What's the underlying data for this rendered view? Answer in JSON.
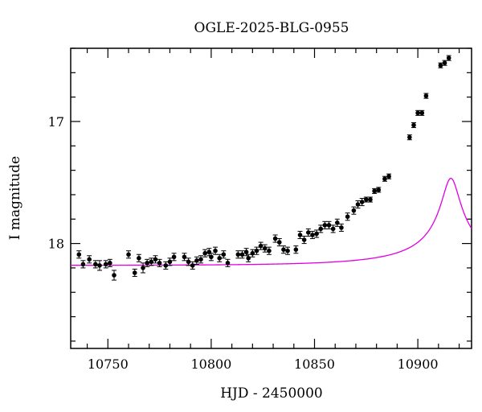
{
  "chart_data": {
    "type": "scatter",
    "title": "OGLE-2025-BLG-0955",
    "xlabel": "HJD - 2450000",
    "ylabel": "I magnitude",
    "xlim": [
      10732,
      10926
    ],
    "ylim": [
      18.86,
      16.4
    ],
    "y_inverted": true,
    "x_ticks": [
      10750,
      10800,
      10850,
      10900
    ],
    "x_tick_labels": [
      "10750",
      "10800",
      "10850",
      "10900"
    ],
    "y_ticks": [
      17,
      18
    ],
    "y_tick_labels": [
      "17",
      "18"
    ],
    "grid": false,
    "legend": "none",
    "colors": {
      "points": "#000000",
      "model": "#e000e0"
    },
    "series": [
      {
        "points": [
          [
            10736,
            18.09,
            0.03
          ],
          [
            10738,
            18.17,
            0.03
          ],
          [
            10741,
            18.13,
            0.03
          ],
          [
            10744,
            18.17,
            0.03
          ],
          [
            10746,
            18.18,
            0.04
          ],
          [
            10749,
            18.17,
            0.03
          ],
          [
            10751,
            18.16,
            0.03
          ],
          [
            10753,
            18.26,
            0.04
          ],
          [
            10760,
            18.09,
            0.03
          ],
          [
            10763,
            18.24,
            0.03
          ],
          [
            10765,
            18.12,
            0.03
          ],
          [
            10767,
            18.2,
            0.04
          ],
          [
            10769,
            18.16,
            0.03
          ],
          [
            10771,
            18.15,
            0.03
          ],
          [
            10773,
            18.13,
            0.03
          ],
          [
            10775,
            18.16,
            0.03
          ],
          [
            10778,
            18.18,
            0.03
          ],
          [
            10780,
            18.15,
            0.03
          ],
          [
            10782,
            18.11,
            0.03
          ],
          [
            10787,
            18.11,
            0.03
          ],
          [
            10789,
            18.15,
            0.03
          ],
          [
            10791,
            18.18,
            0.03
          ],
          [
            10793,
            18.14,
            0.03
          ],
          [
            10795,
            18.13,
            0.03
          ],
          [
            10797,
            18.08,
            0.03
          ],
          [
            10799,
            18.07,
            0.03
          ],
          [
            10800,
            18.11,
            0.03
          ],
          [
            10802,
            18.06,
            0.03
          ],
          [
            10804,
            18.12,
            0.03
          ],
          [
            10806,
            18.09,
            0.03
          ],
          [
            10808,
            18.16,
            0.03
          ],
          [
            10813,
            18.09,
            0.03
          ],
          [
            10815,
            18.09,
            0.03
          ],
          [
            10817,
            18.07,
            0.03
          ],
          [
            10818,
            18.12,
            0.03
          ],
          [
            10820,
            18.08,
            0.03
          ],
          [
            10822,
            18.06,
            0.03
          ],
          [
            10824,
            18.02,
            0.03
          ],
          [
            10826,
            18.04,
            0.03
          ],
          [
            10828,
            18.06,
            0.03
          ],
          [
            10831,
            17.96,
            0.03
          ],
          [
            10833,
            17.99,
            0.03
          ],
          [
            10835,
            18.05,
            0.03
          ],
          [
            10837,
            18.06,
            0.03
          ],
          [
            10841,
            18.05,
            0.03
          ],
          [
            10843,
            17.93,
            0.03
          ],
          [
            10845,
            17.97,
            0.03
          ],
          [
            10847,
            17.91,
            0.03
          ],
          [
            10849,
            17.93,
            0.03
          ],
          [
            10851,
            17.92,
            0.03
          ],
          [
            10853,
            17.88,
            0.03
          ],
          [
            10855,
            17.85,
            0.03
          ],
          [
            10857,
            17.85,
            0.03
          ],
          [
            10859,
            17.88,
            0.03
          ],
          [
            10861,
            17.83,
            0.03
          ],
          [
            10863,
            17.87,
            0.03
          ],
          [
            10866,
            17.78,
            0.03
          ],
          [
            10869,
            17.73,
            0.03
          ],
          [
            10871,
            17.68,
            0.03
          ],
          [
            10873,
            17.66,
            0.03
          ],
          [
            10875,
            17.64,
            0.02
          ],
          [
            10877,
            17.64,
            0.02
          ],
          [
            10879,
            17.57,
            0.02
          ],
          [
            10881,
            17.56,
            0.02
          ],
          [
            10884,
            17.47,
            0.02
          ],
          [
            10886,
            17.45,
            0.02
          ],
          [
            10896,
            17.13,
            0.02
          ],
          [
            10898,
            17.03,
            0.02
          ],
          [
            10900,
            16.93,
            0.02
          ],
          [
            10902,
            16.93,
            0.02
          ],
          [
            10904,
            16.79,
            0.02
          ],
          [
            10911,
            16.54,
            0.02
          ],
          [
            10913,
            16.52,
            0.02
          ],
          [
            10915,
            16.48,
            0.02
          ]
        ]
      }
    ],
    "model": {
      "t0": 10916,
      "u0": 0.07,
      "tE": 60,
      "base_mag": 18.18,
      "fs": 0.07
    }
  }
}
